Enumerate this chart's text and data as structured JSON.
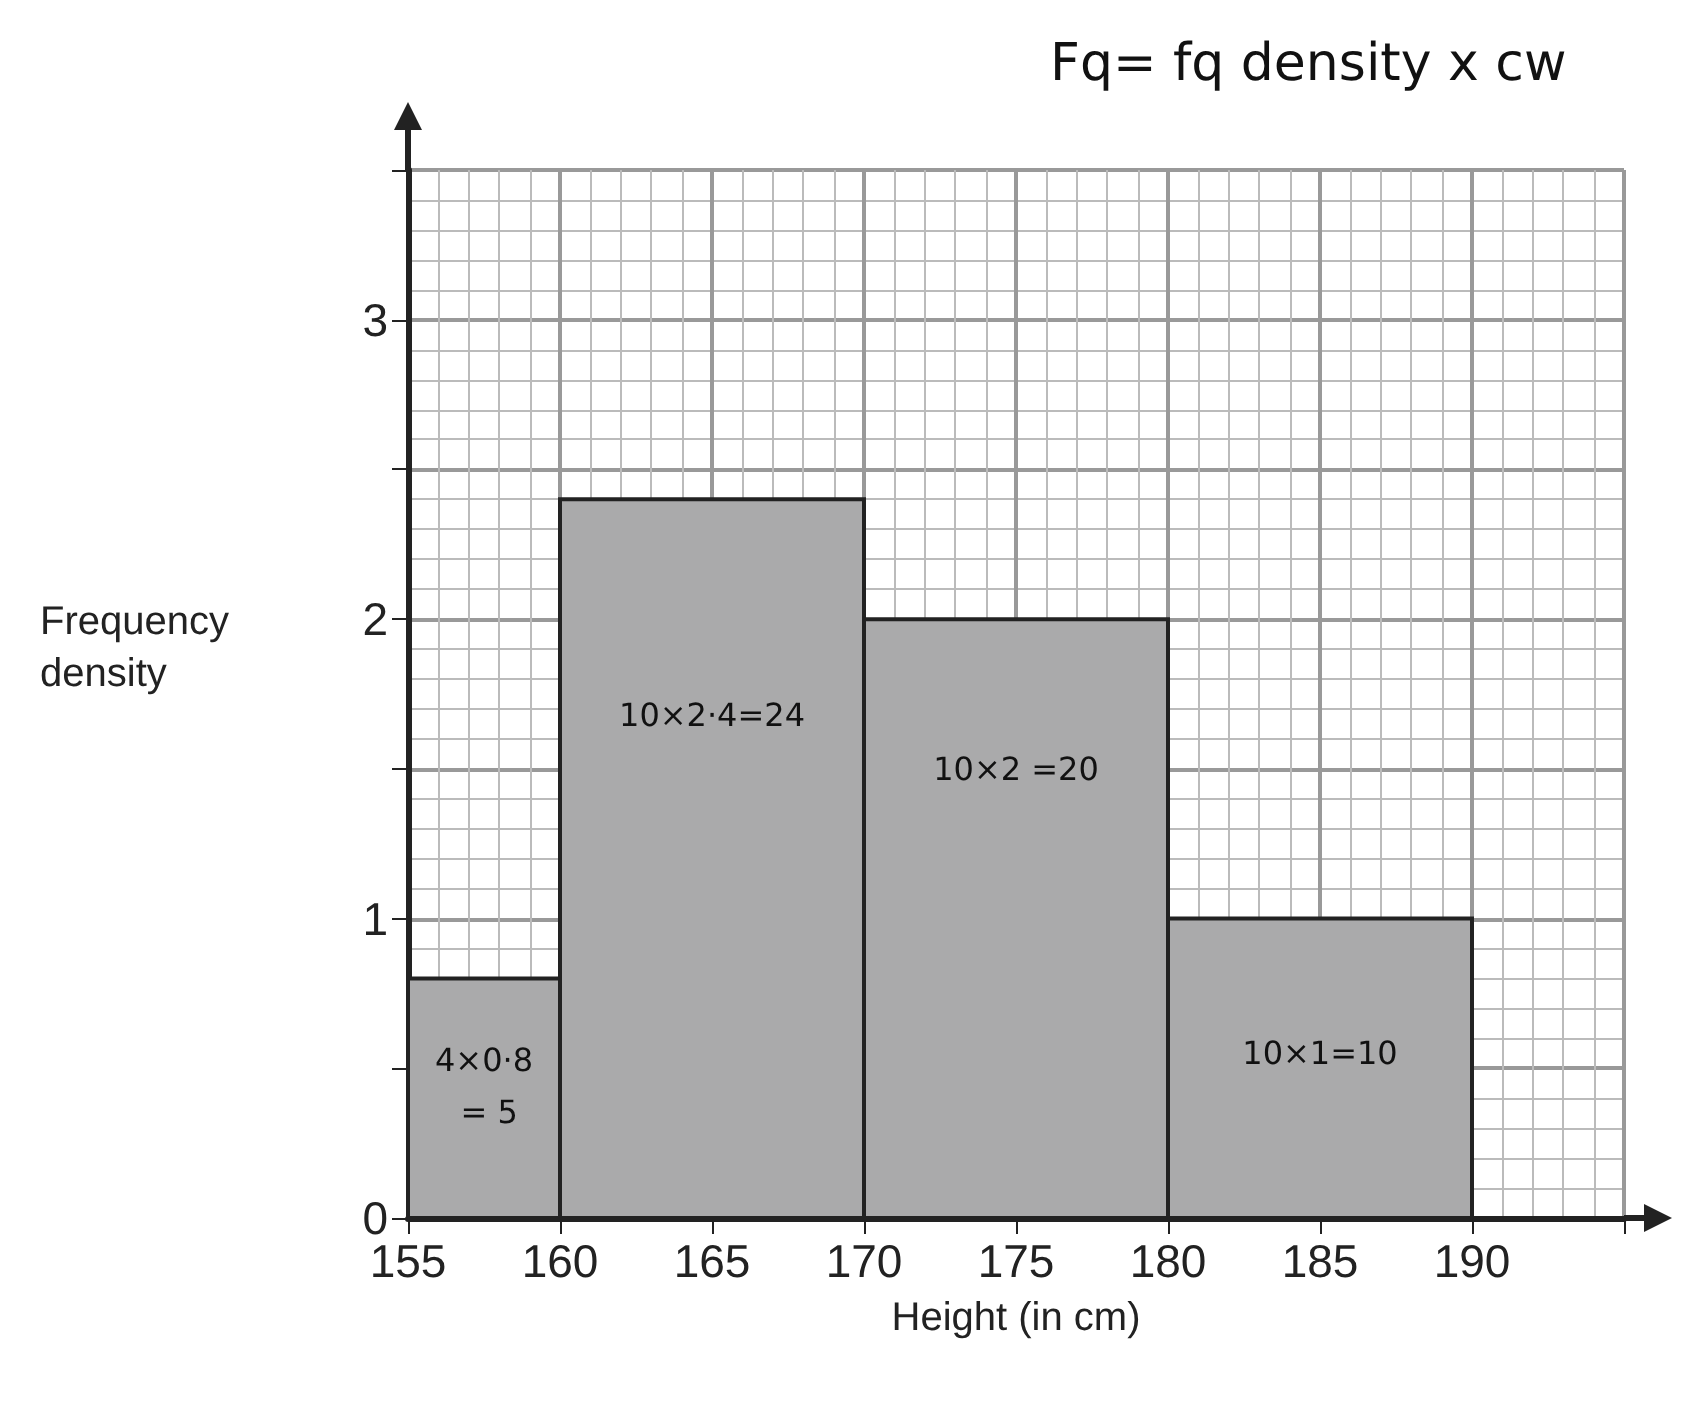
{
  "chart_data": {
    "type": "histogram",
    "title": "Fq= fq density x cw",
    "xlabel": "Height (in cm)",
    "ylabel": "Frequency density",
    "bins": [
      155,
      160,
      170,
      180,
      190
    ],
    "values": [
      0.8,
      2.4,
      2,
      1
    ],
    "color": "#aaaaab",
    "xlim": [
      155,
      195
    ],
    "ylim": [
      0,
      3.5
    ],
    "xticks": [
      155,
      160,
      165,
      170,
      175,
      180,
      185,
      190,
      {
        "value": 195,
        "label": null
      }
    ],
    "yticks": [
      0,
      {
        "value": 0.5,
        "label": null
      },
      1,
      {
        "value": 1.5,
        "label": null
      },
      2,
      {
        "value": 2.5,
        "label": null
      },
      3,
      {
        "value": 3.5,
        "label": null
      }
    ],
    "grid": true,
    "annotations": [
      "4×0·8 = 5",
      "10×2·4=24",
      "10×2 =20",
      "10×1=10"
    ]
  }
}
